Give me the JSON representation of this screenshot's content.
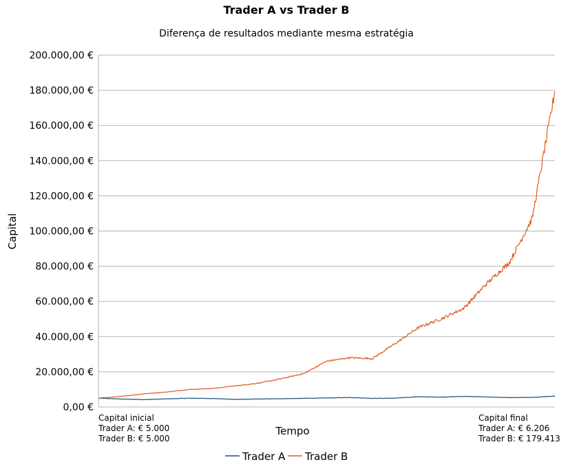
{
  "chart_data": {
    "type": "line",
    "title": "Trader A vs Trader B",
    "subtitle": "Diferença de resultados mediante mesma estratégia",
    "xlabel": "Tempo",
    "ylabel": "Capital",
    "ylim": [
      0,
      200000
    ],
    "y_ticks": [
      "0,00 €",
      "20.000,00 €",
      "40.000,00 €",
      "60.000,00 €",
      "80.000,00 €",
      "100.000,00 €",
      "120.000,00 €",
      "140.000,00 €",
      "160.000,00 €",
      "180.000,00 €",
      "200.000,00 €"
    ],
    "grid": true,
    "legend_position": "bottom",
    "x": [
      0,
      5,
      10,
      15,
      20,
      25,
      30,
      35,
      40,
      45,
      50,
      55,
      60,
      65,
      70,
      75,
      80,
      85,
      90,
      95,
      100
    ],
    "series": [
      {
        "name": "Trader A",
        "color": "#1f4e79",
        "values": [
          5000,
          4500,
          4200,
          4600,
          5000,
          4800,
          4300,
          4500,
          4700,
          4900,
          5100,
          5400,
          4900,
          5000,
          5800,
          5600,
          6000,
          5700,
          5300,
          5400,
          6206
        ]
      },
      {
        "name": "Trader B",
        "color": "#e05a1e",
        "values": [
          5000,
          6000,
          7500,
          8500,
          10000,
          10500,
          12000,
          13500,
          16000,
          19000,
          26000,
          28000,
          27500,
          36000,
          45000,
          50000,
          56000,
          70000,
          82000,
          107000,
          179413
        ]
      }
    ],
    "annotations": {
      "start": {
        "heading": "Capital inicial",
        "line_a": "Trader A: € 5.000",
        "line_b": "Trader B: € 5.000"
      },
      "end": {
        "heading": "Capital final",
        "line_a": "Trader A: € 6.206",
        "line_b": "Trader B: € 179.413"
      }
    }
  }
}
